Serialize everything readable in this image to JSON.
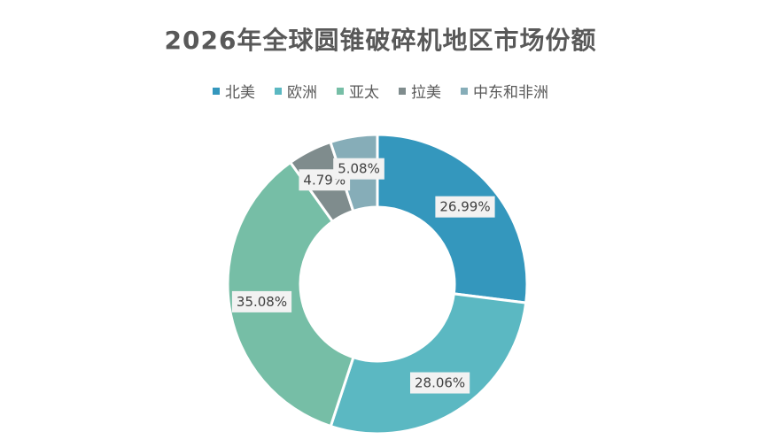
{
  "chart_data": {
    "type": "pie",
    "title": "2026年全球圆锥破碎机地区市场份额",
    "categories": [
      "北美",
      "欧洲",
      "亚太",
      "拉美",
      "中东和非洲"
    ],
    "values": [
      26.99,
      28.06,
      35.08,
      4.79,
      5.08
    ],
    "value_labels": [
      "26.99%",
      "28.06%",
      "35.08%",
      "4.79%",
      "5.08%"
    ],
    "colors": [
      "#3497BD",
      "#5BB8C2",
      "#76BEA6",
      "#7F8C8D",
      "#86ADB8"
    ],
    "legend_position": "top",
    "donut": true
  }
}
